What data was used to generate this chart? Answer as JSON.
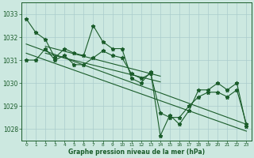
{
  "xlabel": "Graphe pression niveau de la mer (hPa)",
  "bg_color": "#cce8e0",
  "grid_color": "#aacccc",
  "line_color": "#1a5c2a",
  "marker": "*",
  "xlim": [
    -0.5,
    23.5
  ],
  "ylim": [
    1027.5,
    1033.5
  ],
  "yticks": [
    1028,
    1029,
    1030,
    1031,
    1032,
    1033
  ],
  "xticks": [
    0,
    1,
    2,
    3,
    4,
    5,
    6,
    7,
    8,
    9,
    10,
    11,
    12,
    13,
    14,
    15,
    16,
    17,
    18,
    19,
    20,
    21,
    22,
    23
  ],
  "series1": [
    1032.8,
    1032.2,
    1031.9,
    1031.1,
    1031.5,
    1031.3,
    1031.2,
    1032.5,
    1031.8,
    1031.5,
    1031.5,
    1030.2,
    1030.0,
    1030.5,
    1027.7,
    1028.6,
    1028.2,
    1028.8,
    1029.7,
    1029.7,
    1030.0,
    1029.7,
    1030.0,
    1028.1
  ],
  "series2": [
    1031.0,
    1031.0,
    1031.5,
    1031.0,
    1031.2,
    1030.8,
    1030.8,
    1031.1,
    1031.4,
    1031.2,
    1031.1,
    1030.4,
    1030.2,
    1030.4,
    1028.7,
    1028.5,
    1028.5,
    1029.0,
    1029.4,
    1029.6,
    1029.6,
    1029.4,
    1029.7,
    1028.2
  ],
  "trend1_x": [
    0,
    23
  ],
  "trend1_y": [
    1031.7,
    1028.2
  ],
  "trend2_x": [
    0,
    23
  ],
  "trend2_y": [
    1031.3,
    1027.9
  ],
  "trend3_x": [
    2,
    14
  ],
  "trend3_y": [
    1031.6,
    1030.3
  ],
  "trend4_x": [
    2,
    14
  ],
  "trend4_y": [
    1031.3,
    1030.05
  ]
}
